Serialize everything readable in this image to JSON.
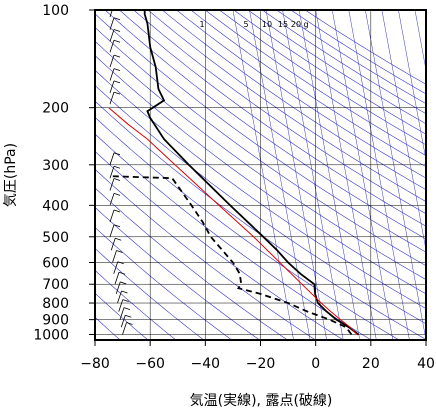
{
  "chart_data": {
    "type": "line",
    "subtype": "emagram (skew-T log-p)",
    "xlabel": "気温(実線), 露点(破線)",
    "ylabel": "気圧(hPa)",
    "xlim": [
      -80,
      40
    ],
    "ylim": [
      1000,
      100
    ],
    "y_scale": "log",
    "grid": true,
    "x_ticks": [
      "−80",
      "−60",
      "−40",
      "−20",
      "0",
      "20",
      "40"
    ],
    "y_ticks": [
      {
        "p": 100,
        "label": "100"
      },
      {
        "p": 200,
        "label": "200"
      },
      {
        "p": 300,
        "label": "300"
      },
      {
        "p": 400,
        "label": "400"
      },
      {
        "p": 500,
        "label": "500"
      },
      {
        "p": 600,
        "label": "600"
      },
      {
        "p": 700,
        "label": "700"
      },
      {
        "p": 800,
        "label": "800"
      },
      {
        "p": 900,
        "label": "900"
      },
      {
        "p": 1000,
        "label": "1000"
      }
    ],
    "mixing_ratio_labels": [
      "1",
      "5",
      "10",
      "15",
      "20",
      "g"
    ],
    "colors": {
      "temperature": "#000000",
      "dewpoint": "#000000",
      "parcel": "#e00000",
      "adiabats": "#3333cc",
      "grid": "#000000"
    },
    "series": [
      {
        "style": "solid",
        "values": [
          {
            "p": 1000,
            "t": 15.5
          },
          {
            "p": 950,
            "t": 12.0
          },
          {
            "p": 900,
            "t": 7.5
          },
          {
            "p": 850,
            "t": 4.0
          },
          {
            "p": 800,
            "t": 0.8
          },
          {
            "p": 750,
            "t": -0.2
          },
          {
            "p": 700,
            "t": -0.5
          },
          {
            "p": 650,
            "t": -5.5
          },
          {
            "p": 600,
            "t": -10.0
          },
          {
            "p": 550,
            "t": -14.0
          },
          {
            "p": 500,
            "t": -19.0
          },
          {
            "p": 400,
            "t": -31.0
          },
          {
            "p": 300,
            "t": -46.0
          },
          {
            "p": 250,
            "t": -55.0
          },
          {
            "p": 215,
            "t": -60.0
          },
          {
            "p": 205,
            "t": -61.0
          },
          {
            "p": 190,
            "t": -55.0
          },
          {
            "p": 175,
            "t": -57.0
          },
          {
            "p": 150,
            "t": -58.0
          },
          {
            "p": 130,
            "t": -60.0
          },
          {
            "p": 110,
            "t": -61.0
          },
          {
            "p": 103,
            "t": -62.0
          },
          {
            "p": 100,
            "t": -62.0
          }
        ]
      },
      {
        "style": "dashed",
        "values": [
          {
            "p": 1000,
            "t": 13.0
          },
          {
            "p": 950,
            "t": 11.0
          },
          {
            "p": 900,
            "t": 5.0
          },
          {
            "p": 850,
            "t": -3.0
          },
          {
            "p": 800,
            "t": -10.0
          },
          {
            "p": 750,
            "t": -20.0
          },
          {
            "p": 720,
            "t": -28.0
          },
          {
            "p": 700,
            "t": -27.0
          },
          {
            "p": 650,
            "t": -27.5
          },
          {
            "p": 600,
            "t": -30.0
          },
          {
            "p": 500,
            "t": -38.0
          },
          {
            "p": 450,
            "t": -41.0
          },
          {
            "p": 400,
            "t": -45.0
          },
          {
            "p": 330,
            "t": -52.0
          },
          {
            "p": 325,
            "t": -75.0
          }
        ]
      },
      {
        "style": "solid",
        "color": "#e00000",
        "values": [
          {
            "p": 1000,
            "t": 15.0
          },
          {
            "p": 950,
            "t": 12.5
          },
          {
            "p": 900,
            "t": 9.0
          },
          {
            "p": 850,
            "t": 5.5
          },
          {
            "p": 800,
            "t": 2.0
          },
          {
            "p": 700,
            "t": -5.0
          },
          {
            "p": 600,
            "t": -13.0
          },
          {
            "p": 500,
            "t": -22.5
          },
          {
            "p": 400,
            "t": -35.0
          },
          {
            "p": 300,
            "t": -51.0
          },
          {
            "p": 250,
            "t": -61.0
          },
          {
            "p": 225,
            "t": -68.0
          },
          {
            "p": 200,
            "t": -75.0
          }
        ]
      }
    ]
  }
}
